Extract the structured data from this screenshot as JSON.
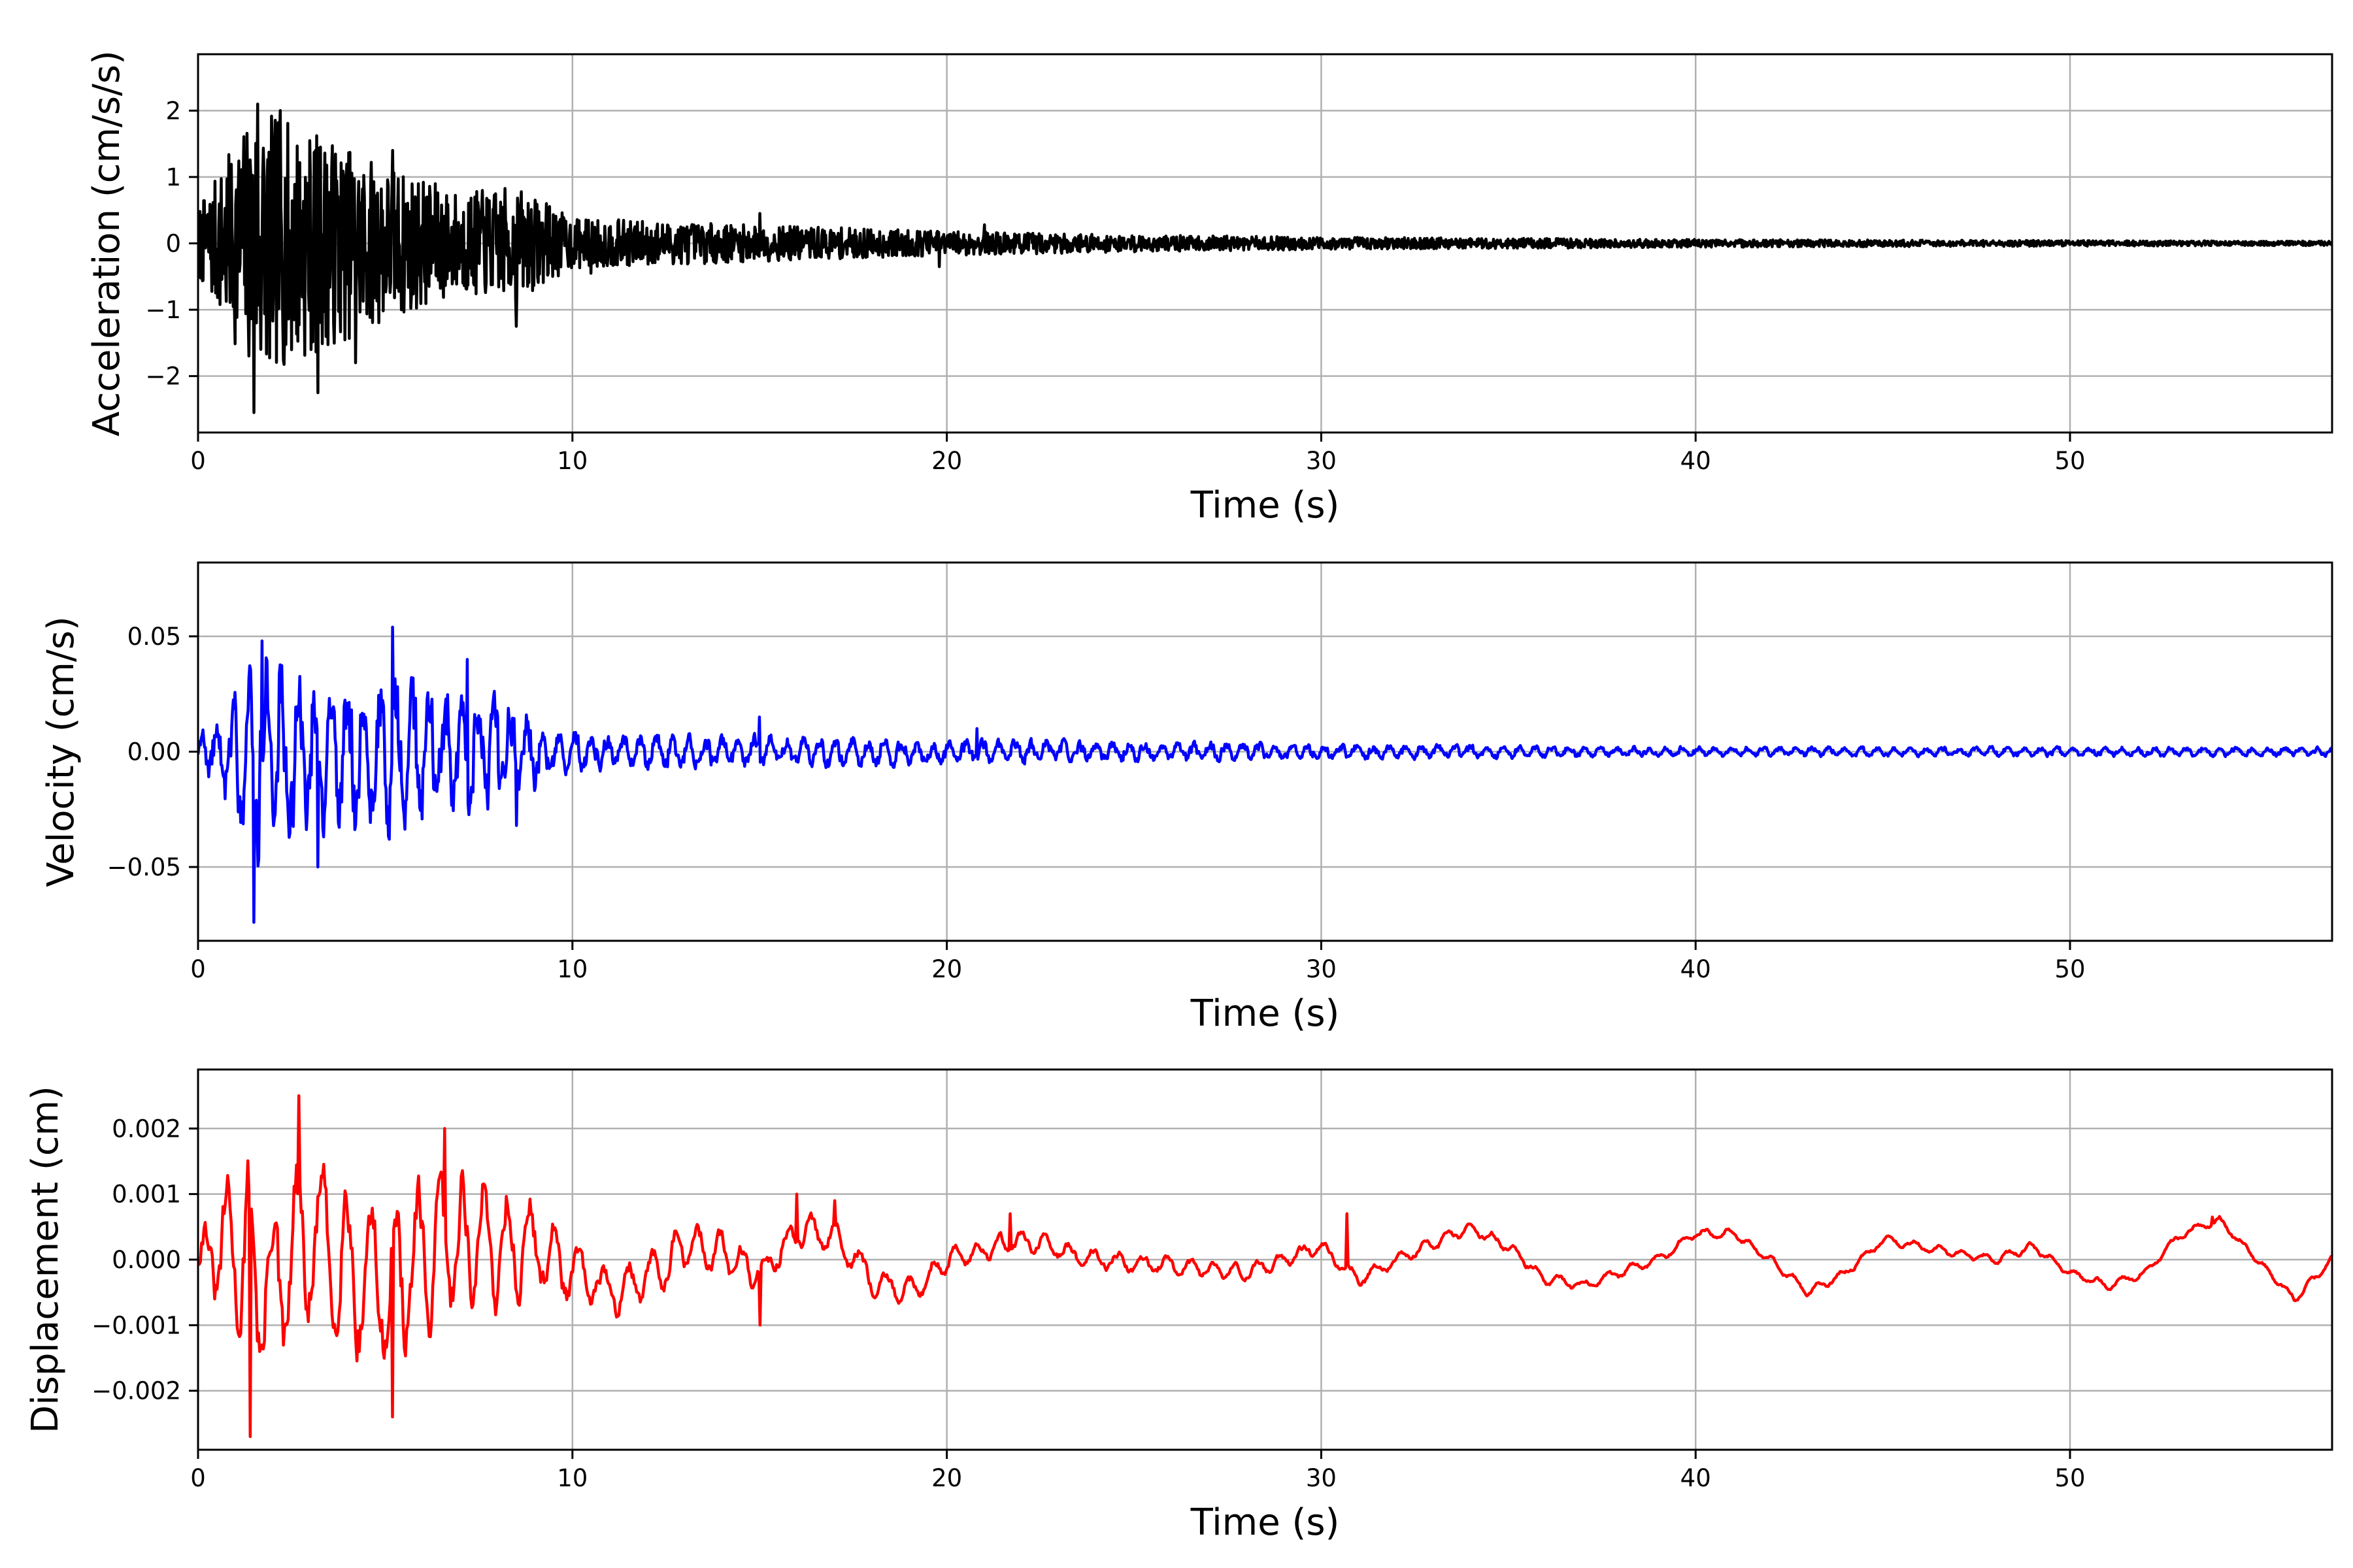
{
  "chart_data": [
    {
      "type": "line",
      "title": "",
      "xlabel": "Time (s)",
      "ylabel": "Acceleration (cm/s/s)",
      "xlim": [
        0,
        57
      ],
      "ylim": [
        -2.85,
        2.85
      ],
      "xticks": [
        0,
        10,
        20,
        30,
        40,
        50
      ],
      "yticks": [
        -2,
        -1,
        0,
        1,
        2
      ],
      "ytick_labels": [
        "−2",
        "−1",
        "0",
        "1",
        "2"
      ],
      "grid": true,
      "series": [
        {
          "color": "#000000",
          "envelope": [
            [
              0,
              0.6
            ],
            [
              1.5,
              2.4
            ],
            [
              3,
              2.0
            ],
            [
              5,
              1.4
            ],
            [
              7,
              0.9
            ],
            [
              8.5,
              1.0
            ],
            [
              10,
              0.45
            ],
            [
              15,
              0.32
            ],
            [
              20,
              0.22
            ],
            [
              25,
              0.15
            ],
            [
              30,
              0.11
            ],
            [
              40,
              0.07
            ],
            [
              50,
              0.05
            ],
            [
              57,
              0.04
            ]
          ],
          "peaks": [
            [
              1.5,
              -2.55
            ],
            [
              1.6,
              2.1
            ],
            [
              2.2,
              2.0
            ],
            [
              3.2,
              -2.25
            ],
            [
              4.2,
              -1.8
            ],
            [
              5.2,
              1.4
            ],
            [
              8.5,
              -1.25
            ],
            [
              9.3,
              0.6
            ],
            [
              10.5,
              -0.45
            ],
            [
              15.0,
              0.45
            ],
            [
              19.8,
              -0.35
            ],
            [
              21.0,
              0.28
            ]
          ]
        }
      ]
    },
    {
      "type": "line",
      "title": "",
      "xlabel": "Time (s)",
      "ylabel": "Velocity (cm/s)",
      "xlim": [
        0,
        57
      ],
      "ylim": [
        -0.082,
        0.082
      ],
      "xticks": [
        0,
        10,
        20,
        30,
        40,
        50
      ],
      "yticks": [
        -0.05,
        0,
        0.05
      ],
      "ytick_labels": [
        "−0.05",
        "0.00",
        "0.05"
      ],
      "grid": true,
      "series": [
        {
          "color": "#0000ff",
          "envelope": [
            [
              0,
              0.008
            ],
            [
              1,
              0.045
            ],
            [
              1.6,
              0.07
            ],
            [
              3,
              0.048
            ],
            [
              5.2,
              0.052
            ],
            [
              7,
              0.04
            ],
            [
              8.5,
              0.03
            ],
            [
              10,
              0.012
            ],
            [
              15,
              0.01
            ],
            [
              20,
              0.008
            ],
            [
              30,
              0.005
            ],
            [
              40,
              0.003
            ],
            [
              57,
              0.003
            ]
          ],
          "peaks": [
            [
              1.5,
              -0.074
            ],
            [
              1.7,
              0.048
            ],
            [
              3.2,
              -0.05
            ],
            [
              5.2,
              0.054
            ],
            [
              7.2,
              0.04
            ],
            [
              8.5,
              -0.032
            ],
            [
              15.0,
              0.015
            ],
            [
              20.8,
              0.01
            ]
          ]
        }
      ]
    },
    {
      "type": "line",
      "title": "",
      "xlabel": "Time (s)",
      "ylabel": "Displacement (cm)",
      "xlim": [
        0,
        57
      ],
      "ylim": [
        -0.0029,
        0.0029
      ],
      "xticks": [
        0,
        10,
        20,
        30,
        40,
        50
      ],
      "yticks": [
        -0.002,
        -0.001,
        0,
        0.001,
        0.002
      ],
      "ytick_labels": [
        "−0.002",
        "−0.001",
        "0.000",
        "0.001",
        "0.002"
      ],
      "grid": true,
      "series": [
        {
          "color": "#ff0000",
          "trend": [
            [
              0,
              0
            ],
            [
              1,
              0.0002
            ],
            [
              2,
              -0.0005
            ],
            [
              3,
              0.0003
            ],
            [
              5,
              -0.0004
            ],
            [
              7,
              0.0003
            ],
            [
              9,
              0.0002
            ],
            [
              10,
              -0.0002
            ],
            [
              11,
              -0.0005
            ],
            [
              12,
              -0.0003
            ],
            [
              13,
              0.0002
            ],
            [
              14,
              0.0001
            ],
            [
              15,
              -0.0002
            ],
            [
              16,
              0.0004
            ],
            [
              17,
              0.0004
            ],
            [
              18,
              -0.0003
            ],
            [
              19,
              -0.0005
            ],
            [
              20,
              0.0
            ],
            [
              22,
              0.0003
            ],
            [
              24,
              0.0
            ],
            [
              26,
              -0.0001
            ],
            [
              28,
              -0.0002
            ],
            [
              30,
              0.0002
            ],
            [
              31,
              -0.0003
            ],
            [
              32,
              0.0
            ],
            [
              34,
              0.0005
            ],
            [
              35,
              0.0002
            ],
            [
              36,
              -0.0003
            ],
            [
              37,
              -0.0004
            ],
            [
              38,
              -0.0002
            ],
            [
              39,
              0.0
            ],
            [
              40,
              0.0004
            ],
            [
              41,
              0.0004
            ],
            [
              42,
              0.0
            ],
            [
              43,
              -0.0005
            ],
            [
              44,
              -0.0002
            ],
            [
              45,
              0.0003
            ],
            [
              46,
              0.0002
            ],
            [
              48,
              0.0
            ],
            [
              49,
              0.0002
            ],
            [
              50,
              -0.0002
            ],
            [
              51,
              -0.0004
            ],
            [
              52,
              -0.0002
            ],
            [
              53,
              0.0004
            ],
            [
              54,
              0.0006
            ],
            [
              55,
              0.0
            ],
            [
              56,
              -0.0006
            ],
            [
              57,
              0.0
            ]
          ],
          "amplitude": [
            [
              0,
              0.0006
            ],
            [
              1.5,
              0.0022
            ],
            [
              3,
              0.0018
            ],
            [
              6,
              0.0016
            ],
            [
              8,
              0.0014
            ],
            [
              10,
              0.0006
            ],
            [
              15,
              0.0004
            ],
            [
              20,
              0.00025
            ],
            [
              30,
              0.00015
            ],
            [
              40,
              0.0001
            ],
            [
              57,
              8e-05
            ]
          ],
          "peaks": [
            [
              1.4,
              -0.0027
            ],
            [
              2.7,
              0.0025
            ],
            [
              5.2,
              -0.0024
            ],
            [
              6.6,
              0.002
            ],
            [
              15.0,
              -0.001
            ],
            [
              16.0,
              0.001
            ],
            [
              17.0,
              0.0009
            ],
            [
              21.7,
              0.0007
            ],
            [
              30.7,
              0.0007
            ],
            [
              53.8,
              0.00065
            ]
          ]
        }
      ]
    }
  ]
}
